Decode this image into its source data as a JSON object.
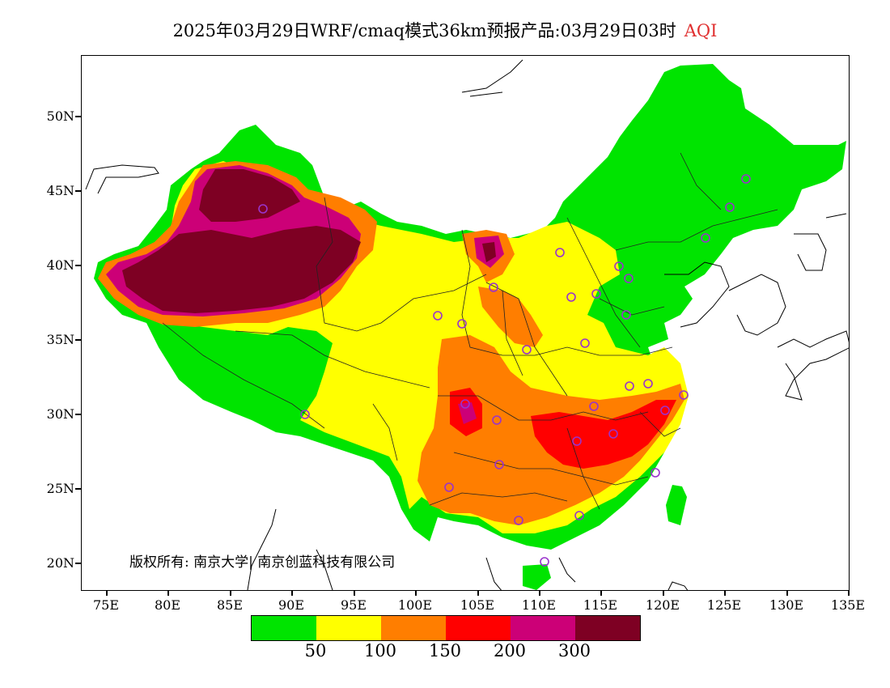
{
  "title": {
    "main": "2025年03月29日WRF/cmaq模式36km预报产品:03月29日03时",
    "variable": "AQI"
  },
  "y_axis": {
    "ticks": [
      "50N",
      "45N",
      "40N",
      "35N",
      "30N",
      "25N",
      "20N"
    ]
  },
  "x_axis": {
    "ticks": [
      "75E",
      "80E",
      "85E",
      "90E",
      "95E",
      "100E",
      "105E",
      "110E",
      "115E",
      "120E",
      "125E",
      "130E",
      "135E"
    ]
  },
  "copyright": "版权所有: 南京大学| 南京创蓝科技有限公司",
  "legend": {
    "colors": [
      "#00e400",
      "#ffff00",
      "#ff7e00",
      "#ff0000",
      "#cc0077",
      "#7e0023"
    ],
    "labels": [
      "50",
      "100",
      "150",
      "200",
      "300"
    ]
  },
  "stations_visible": true
}
